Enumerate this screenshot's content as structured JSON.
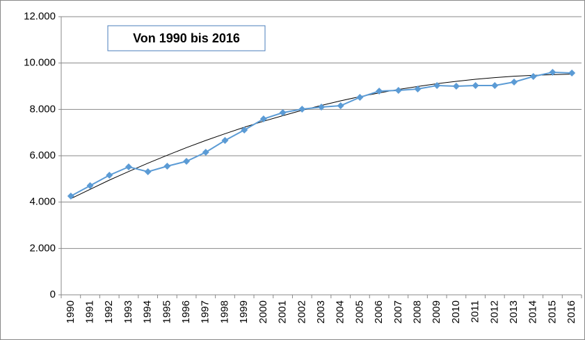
{
  "chart_data": {
    "type": "line",
    "annotation": "Von 1990 bis 2016",
    "categories": [
      "1990",
      "1991",
      "1992",
      "1993",
      "1994",
      "1995",
      "1996",
      "1997",
      "1998",
      "1999",
      "2000",
      "2001",
      "2002",
      "2003",
      "2004",
      "2005",
      "2006",
      "2007",
      "2008",
      "2009",
      "2010",
      "2011",
      "2012",
      "2013",
      "2014",
      "2015",
      "2016"
    ],
    "values": [
      4260,
      4710,
      5160,
      5520,
      5310,
      5550,
      5760,
      6150,
      6660,
      7110,
      7590,
      7860,
      8010,
      8100,
      8160,
      8520,
      8790,
      8820,
      8880,
      9030,
      9000,
      9030,
      9030,
      9180,
      9420,
      9600,
      9570
    ],
    "color": "#5b9bd5",
    "trendline": {
      "color": "#000000",
      "values": [
        4150,
        4550,
        4950,
        5320,
        5680,
        6020,
        6350,
        6660,
        6950,
        7230,
        7490,
        7730,
        7960,
        8170,
        8370,
        8550,
        8710,
        8860,
        8990,
        9110,
        9210,
        9300,
        9370,
        9430,
        9470,
        9500,
        9520
      ]
    },
    "ylim": [
      0,
      12000
    ],
    "yticks": [
      0,
      {
        "value": 2000,
        "label": "2.000"
      },
      {
        "value": 4000,
        "label": "4.000"
      },
      {
        "value": 6000,
        "label": "6.000"
      },
      {
        "value": 8000,
        "label": "8.000"
      },
      {
        "value": 10000,
        "label": "10.000"
      },
      {
        "value": 12000,
        "label": "12.000"
      }
    ],
    "grid": true
  }
}
